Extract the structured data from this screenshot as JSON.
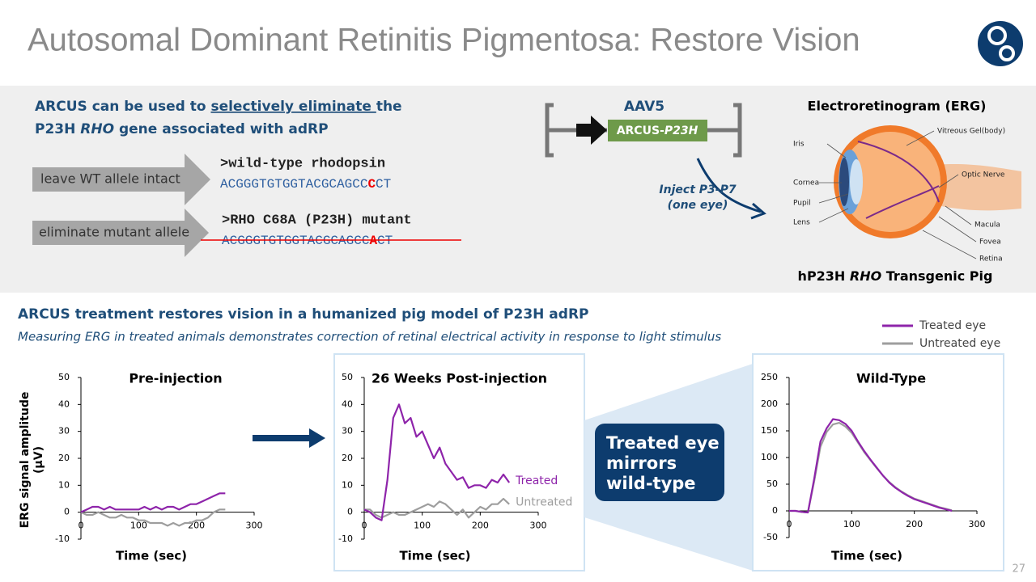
{
  "title": "Autosomal Dominant Retinitis Pigmentosa: Restore Vision",
  "intro": [
    "ARCUS can be used to ",
    "selectively eliminate ",
    "the",
    "P23H ",
    "RHO",
    " gene associated with adRP"
  ],
  "alleles": [
    {
      "action": "leave WT allele intact",
      "label": ">wild-type rhodopsin",
      "before": "ACGGGTGTGGTACGCAGCC",
      "mark": "C",
      "after": "CT"
    },
    {
      "action": "eliminate mutant allele",
      "label": ">RHO C68A (P23H) mutant",
      "before": "ACGGGTGTGGTACGCAGCC",
      "mark": "A",
      "after": "CT"
    }
  ],
  "vector": {
    "label": "AAV5",
    "cassette": "ARCUS-",
    "cassette_italic": "P23H"
  },
  "inject": [
    "Inject P3-P7",
    "(one eye)"
  ],
  "erg_title": "Electroretinogram (ERG)",
  "eye_labels": [
    "Iris",
    "Cornea",
    "Pupil",
    "Lens",
    "Vitreous Gel(body)",
    "Optic Nerve",
    "Macula",
    "Fovea",
    "Retina"
  ],
  "pig": [
    "hP23H ",
    "RHO",
    " Transgenic Pig"
  ],
  "section": {
    "heading": "ARCUS treatment restores vision in a humanized pig model of P23H adRP",
    "subheading": "Measuring ERG in treated animals demonstrates correction of retinal electrical activity in response to light stimulus"
  },
  "legend": [
    {
      "label": "Treated eye",
      "color": "#8e24aa"
    },
    {
      "label": "Untreated eye",
      "color": "#9e9e9e"
    }
  ],
  "callout": "Treated eye mirrors wild-type",
  "page_number": "27",
  "chart_data": [
    {
      "type": "line",
      "title": "Pre-injection",
      "ylabel": "ERG signal amplitude (µV)",
      "xlabel": "Time (sec)",
      "x": [
        0,
        10,
        20,
        30,
        40,
        50,
        60,
        70,
        80,
        90,
        100,
        110,
        120,
        130,
        140,
        150,
        160,
        170,
        180,
        190,
        200,
        210,
        220,
        230,
        240,
        250
      ],
      "xlim": [
        0,
        300
      ],
      "xticks": [
        0,
        100,
        200,
        300
      ],
      "ylim": [
        -10,
        50
      ],
      "yticks": [
        -10,
        0,
        10,
        20,
        30,
        40,
        50
      ],
      "series": [
        {
          "color": "#8e24aa",
          "values": [
            0,
            1,
            2,
            2,
            1,
            2,
            1,
            1,
            1,
            1,
            1,
            2,
            1,
            2,
            1,
            2,
            2,
            1,
            2,
            3,
            3,
            4,
            5,
            6,
            7,
            7
          ]
        },
        {
          "color": "#9e9e9e",
          "values": [
            0,
            -1,
            -1,
            0,
            -1,
            -2,
            -2,
            -1,
            -2,
            -2,
            -3,
            -3,
            -4,
            -4,
            -4,
            -5,
            -4,
            -5,
            -4,
            -4,
            -3,
            -3,
            -2,
            0,
            1,
            1
          ]
        }
      ]
    },
    {
      "type": "line",
      "title": "26 Weeks Post-injection",
      "xlabel": "Time (sec)",
      "x": [
        0,
        10,
        20,
        30,
        40,
        50,
        60,
        70,
        80,
        90,
        100,
        110,
        120,
        130,
        140,
        150,
        160,
        170,
        180,
        190,
        200,
        210,
        220,
        230,
        240,
        250
      ],
      "xlim": [
        0,
        300
      ],
      "xticks": [
        0,
        100,
        200,
        300
      ],
      "ylim": [
        -10,
        50
      ],
      "yticks": [
        -10,
        0,
        10,
        20,
        30,
        40,
        50
      ],
      "series": [
        {
          "name": "Treated",
          "color": "#8e24aa",
          "values": [
            1,
            0,
            -2,
            -3,
            12,
            35,
            40,
            33,
            35,
            28,
            30,
            25,
            20,
            24,
            18,
            15,
            12,
            13,
            9,
            10,
            10,
            9,
            12,
            11,
            14,
            11
          ]
        },
        {
          "name": "Untreated",
          "color": "#9e9e9e",
          "values": [
            1,
            1,
            -1,
            -2,
            -1,
            0,
            -1,
            -1,
            0,
            1,
            2,
            3,
            2,
            4,
            3,
            1,
            -1,
            1,
            -2,
            0,
            2,
            1,
            3,
            3,
            5,
            3
          ]
        }
      ]
    },
    {
      "type": "line",
      "title": "Wild-Type",
      "xlabel": "Time (sec)",
      "x": [
        0,
        10,
        20,
        30,
        40,
        50,
        60,
        70,
        80,
        90,
        100,
        110,
        120,
        130,
        140,
        150,
        160,
        170,
        180,
        190,
        200,
        210,
        220,
        230,
        240,
        250,
        260
      ],
      "xlim": [
        0,
        300
      ],
      "xticks": [
        0,
        100,
        200,
        300
      ],
      "ylim": [
        -50,
        250
      ],
      "yticks": [
        -50,
        0,
        50,
        100,
        150,
        200,
        250
      ],
      "series": [
        {
          "color": "#8e24aa",
          "values": [
            0,
            0,
            -2,
            -3,
            60,
            130,
            155,
            172,
            170,
            163,
            150,
            130,
            112,
            96,
            81,
            66,
            53,
            43,
            35,
            28,
            22,
            18,
            14,
            10,
            6,
            3,
            0
          ]
        },
        {
          "color": "#9e9e9e",
          "values": [
            0,
            0,
            -2,
            -3,
            55,
            120,
            148,
            162,
            165,
            158,
            146,
            128,
            110,
            95,
            80,
            66,
            54,
            44,
            36,
            29,
            23,
            19,
            15,
            11,
            7,
            4,
            1
          ]
        }
      ]
    }
  ]
}
